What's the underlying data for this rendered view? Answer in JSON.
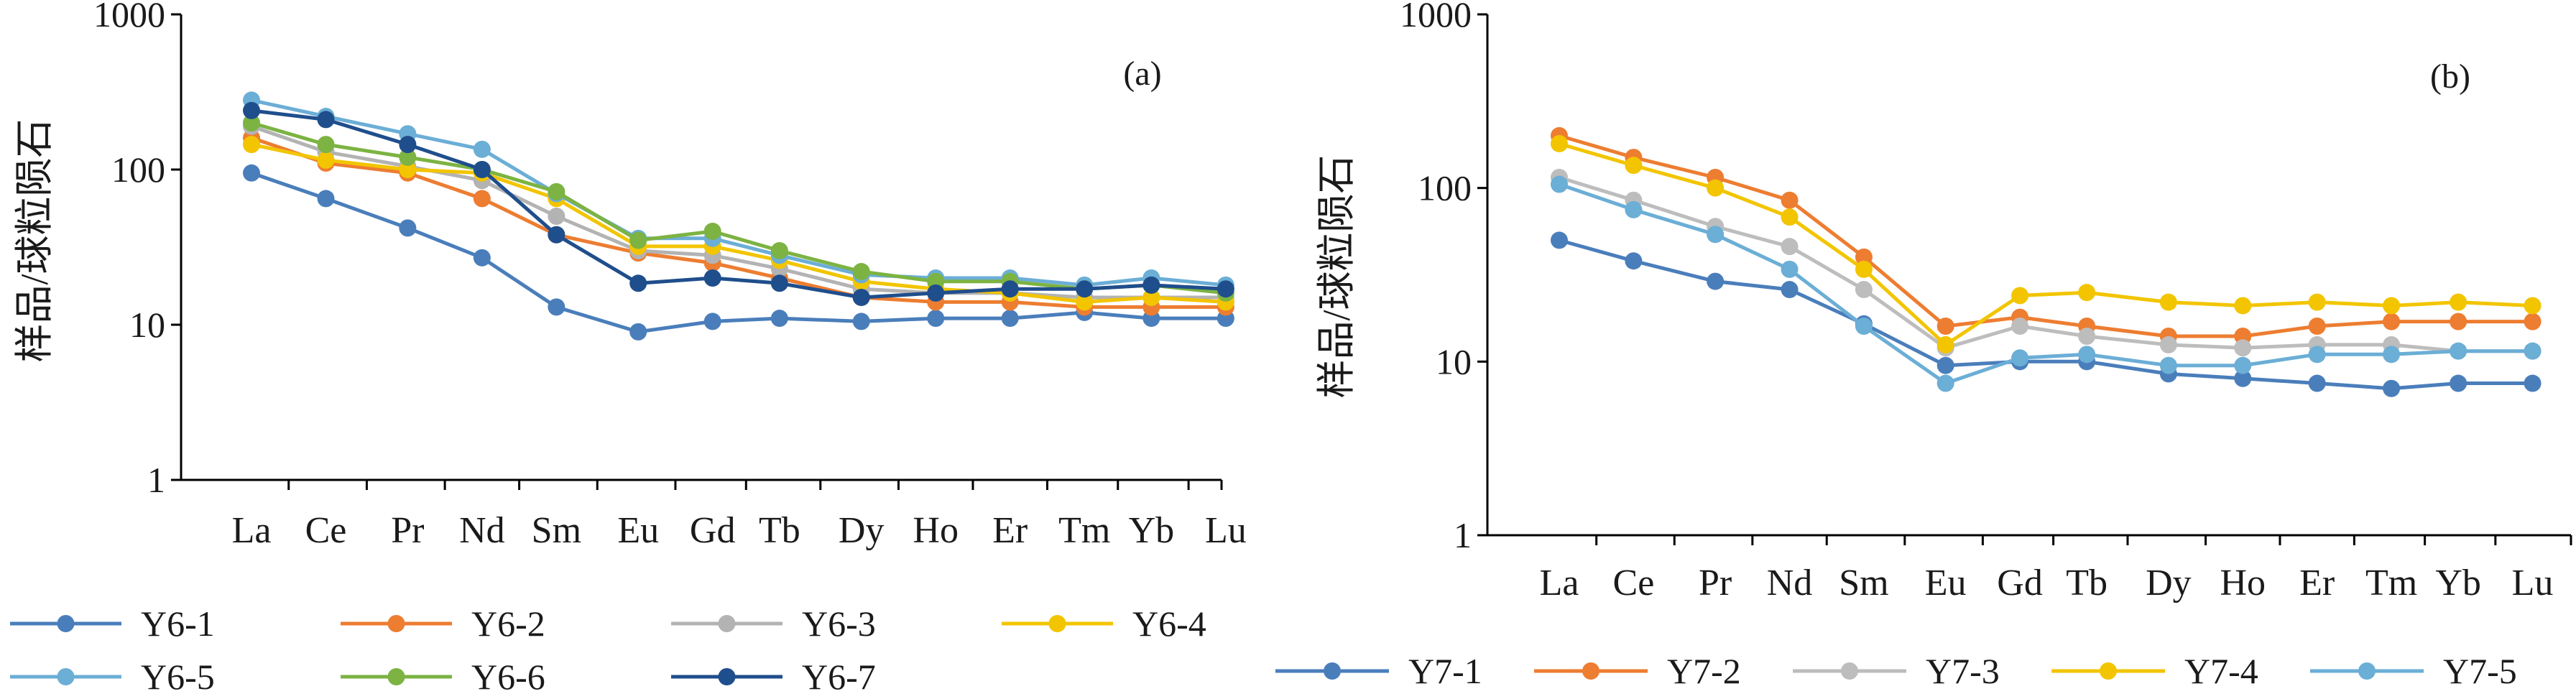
{
  "chart_data": [
    {
      "type": "line",
      "panel_label": "(a)",
      "ylabel": "样品/球粒陨石",
      "yscale": "log",
      "ylim": [
        1,
        1000
      ],
      "y_ticks": [
        "1",
        "10",
        "100",
        "1000"
      ],
      "categories": [
        "La",
        "Ce",
        "Pr",
        "Nd",
        "Sm",
        "Eu",
        "Gd",
        "Tb",
        "Dy",
        "Ho",
        "Er",
        "Tm",
        "Yb",
        "Lu"
      ],
      "x_positions": [
        0,
        1,
        2.1,
        3.1,
        4.1,
        5.2,
        6.2,
        7.1,
        8.2,
        9.2,
        10.2,
        11.2,
        12.1,
        13.1
      ],
      "legend_position": "bottom",
      "series": [
        {
          "name": "Y6-1",
          "color": "#4a7ebb",
          "values": [
            95,
            65,
            42,
            27,
            13,
            9,
            10.5,
            11,
            10.5,
            11,
            11,
            12,
            11,
            11
          ]
        },
        {
          "name": "Y6-2",
          "color": "#ed7d31",
          "values": [
            160,
            110,
            95,
            65,
            38,
            29,
            25,
            20,
            15,
            14,
            14,
            13,
            13,
            13
          ]
        },
        {
          "name": "Y6-3",
          "color": "#b3b3b3",
          "values": [
            190,
            130,
            105,
            85,
            50,
            30,
            28,
            23,
            17,
            16,
            16,
            15,
            15,
            15
          ]
        },
        {
          "name": "Y6-4",
          "color": "#f2c500",
          "values": [
            145,
            115,
            100,
            95,
            65,
            32,
            32,
            26,
            19,
            17,
            16,
            14,
            15,
            14
          ]
        },
        {
          "name": "Y6-5",
          "color": "#6baed6",
          "values": [
            280,
            220,
            170,
            135,
            70,
            36,
            36,
            28,
            21,
            20,
            20,
            18,
            20,
            18
          ]
        },
        {
          "name": "Y6-6",
          "color": "#7cb342",
          "values": [
            200,
            145,
            120,
            100,
            72,
            35,
            40,
            30,
            22,
            19,
            19,
            17,
            18,
            16
          ]
        },
        {
          "name": "Y6-7",
          "color": "#1f4e8c",
          "values": [
            240,
            210,
            145,
            100,
            38,
            18.5,
            20,
            18.5,
            15,
            16,
            17,
            17,
            18,
            17
          ]
        }
      ]
    },
    {
      "type": "line",
      "panel_label": "(b)",
      "ylabel": "样品/球粒陨石",
      "yscale": "log",
      "ylim": [
        1,
        1000
      ],
      "y_ticks": [
        "1",
        "10",
        "100",
        "1000"
      ],
      "categories": [
        "La",
        "Ce",
        "Pr",
        "Nd",
        "Sm",
        "Eu",
        "Gd",
        "Tb",
        "Dy",
        "Ho",
        "Er",
        "Tm",
        "Yb",
        "Lu"
      ],
      "x_positions": [
        0,
        1,
        2.1,
        3.1,
        4.1,
        5.2,
        6.2,
        7.1,
        8.2,
        9.2,
        10.2,
        11.2,
        12.1,
        13.1
      ],
      "legend_position": "bottom",
      "series": [
        {
          "name": "Y7-1",
          "color": "#4a7ebb",
          "values": [
            50,
            38,
            29,
            26,
            16.5,
            9.5,
            10,
            10,
            8.5,
            8,
            7.5,
            7,
            7.5,
            7.5
          ]
        },
        {
          "name": "Y7-2",
          "color": "#ed7d31",
          "values": [
            200,
            150,
            115,
            85,
            40,
            16,
            18,
            16,
            14,
            14,
            16,
            17,
            17,
            17
          ]
        },
        {
          "name": "Y7-3",
          "color": "#bdbdbd",
          "values": [
            115,
            85,
            60,
            46,
            26,
            12,
            16,
            14,
            12.5,
            12,
            12.5,
            12.5,
            11.5,
            11.5
          ]
        },
        {
          "name": "Y7-4",
          "color": "#f2c500",
          "values": [
            180,
            135,
            100,
            68,
            34,
            12.5,
            24,
            25,
            22,
            21,
            22,
            21,
            22,
            21
          ]
        },
        {
          "name": "Y7-5",
          "color": "#6baed6",
          "values": [
            105,
            75,
            54,
            34,
            16,
            7.5,
            10.5,
            11,
            9.5,
            9.5,
            11,
            11,
            11.5,
            11.5
          ]
        }
      ]
    }
  ]
}
